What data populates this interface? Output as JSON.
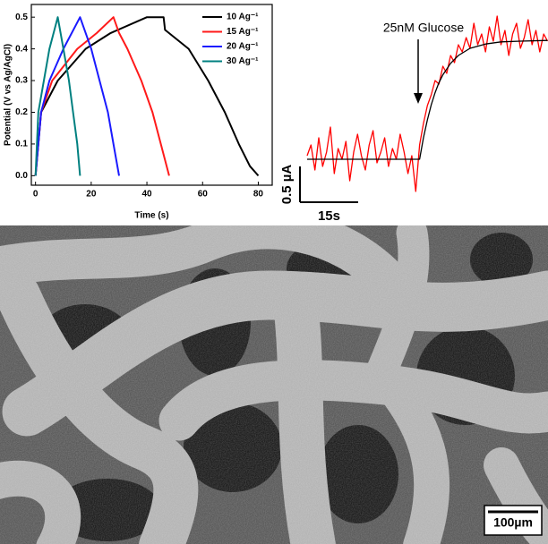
{
  "chart_data": [
    {
      "type": "line",
      "ylabel": "Potential (V vs Ag/AgCl)",
      "xlabel": "Time (s)",
      "xlim": [
        -1.5,
        85
      ],
      "xticks": [
        0,
        20,
        40,
        60,
        80
      ],
      "ylim": [
        -0.03,
        0.54
      ],
      "yticks": [
        {
          "value": 0,
          "label": "0.0"
        },
        {
          "value": 0.1,
          "label": "0.1"
        },
        {
          "value": 0.2,
          "label": "0.2"
        },
        {
          "value": 0.3,
          "label": "0.3"
        },
        {
          "value": 0.4,
          "label": "0.4"
        },
        {
          "value": 0.5,
          "label": "0.5"
        }
      ],
      "legend": "upper right",
      "series": [
        {
          "name": "10 Ag⁻¹",
          "color": "#000000",
          "x": [
            0,
            2,
            8,
            18,
            27,
            40,
            46,
            46.5,
            55,
            62,
            68,
            73,
            77,
            80
          ],
          "values": [
            0,
            0.2,
            0.3,
            0.4,
            0.45,
            0.5,
            0.5,
            0.46,
            0.4,
            0.3,
            0.2,
            0.1,
            0.03,
            0
          ]
        },
        {
          "name": "15 Ag⁻¹",
          "color": "#ff1a1a",
          "x": [
            0,
            2,
            6,
            15,
            22,
            28,
            30,
            33,
            38,
            42,
            45,
            48
          ],
          "values": [
            0,
            0.2,
            0.3,
            0.4,
            0.45,
            0.5,
            0.45,
            0.4,
            0.3,
            0.2,
            0.1,
            0
          ]
        },
        {
          "name": "20 Ag⁻¹",
          "color": "#1a1aff",
          "x": [
            0,
            2,
            5,
            10,
            16,
            20,
            23,
            26,
            28,
            30
          ],
          "values": [
            0,
            0.2,
            0.3,
            0.4,
            0.5,
            0.4,
            0.3,
            0.2,
            0.1,
            0
          ]
        },
        {
          "name": "30 Ag⁻¹",
          "color": "#008080",
          "x": [
            0,
            1,
            3,
            5,
            8,
            10,
            12,
            13.5,
            15,
            16
          ],
          "values": [
            0,
            0.2,
            0.3,
            0.4,
            0.5,
            0.4,
            0.3,
            0.2,
            0.1,
            0
          ]
        }
      ]
    },
    {
      "type": "line",
      "annotation": "25nM Glucose",
      "xlim": [
        0,
        62
      ],
      "ylim": [
        -0.6,
        2.2
      ],
      "scale_bars": {
        "y": {
          "value": 0.5,
          "label": "0.5 µA"
        },
        "x": {
          "value": 15,
          "label": "15s"
        }
      },
      "series": [
        {
          "color": "#ff0000",
          "x": [
            0,
            1,
            2,
            3,
            4,
            5,
            6,
            7,
            8,
            9,
            10,
            11,
            12,
            13,
            14,
            15,
            16,
            17,
            18,
            19,
            20,
            21,
            22,
            23,
            24,
            25,
            26,
            27,
            28,
            29,
            30,
            31,
            32,
            33,
            34,
            35,
            36,
            37,
            38,
            39,
            40,
            41,
            42,
            43,
            44,
            45,
            46,
            47,
            48,
            49,
            50,
            51,
            52,
            53,
            54,
            55,
            56,
            57,
            58,
            59,
            60,
            61,
            62
          ],
          "values": [
            0.05,
            0.2,
            -0.15,
            0.3,
            -0.1,
            0.1,
            0.45,
            -0.2,
            0.15,
            0.0,
            0.25,
            -0.3,
            0.1,
            0.35,
            0.05,
            -0.15,
            0.2,
            0.4,
            -0.05,
            0.1,
            0.3,
            -0.1,
            0.15,
            0.0,
            0.35,
            0.1,
            -0.2,
            0.05,
            -0.45,
            0.2,
            0.5,
            0.75,
            0.9,
            1.1,
            1.05,
            1.3,
            1.2,
            1.45,
            1.35,
            1.6,
            1.5,
            1.7,
            1.55,
            1.9,
            1.6,
            1.75,
            1.5,
            1.85,
            1.65,
            2.0,
            1.6,
            1.8,
            1.45,
            1.75,
            1.9,
            1.55,
            1.7,
            1.95,
            1.6,
            1.8,
            1.5,
            1.75,
            1.65
          ]
        },
        {
          "color": "#000000",
          "x": [
            0,
            28,
            29,
            30,
            31,
            32,
            33,
            34,
            35,
            37,
            39,
            42,
            46,
            50,
            55,
            62
          ],
          "values": [
            0,
            0,
            0,
            0.3,
            0.55,
            0.76,
            0.93,
            1.07,
            1.18,
            1.34,
            1.45,
            1.55,
            1.61,
            1.64,
            1.65,
            1.66
          ]
        }
      ]
    }
  ],
  "image": {
    "scale_bar_label": "100µm"
  }
}
